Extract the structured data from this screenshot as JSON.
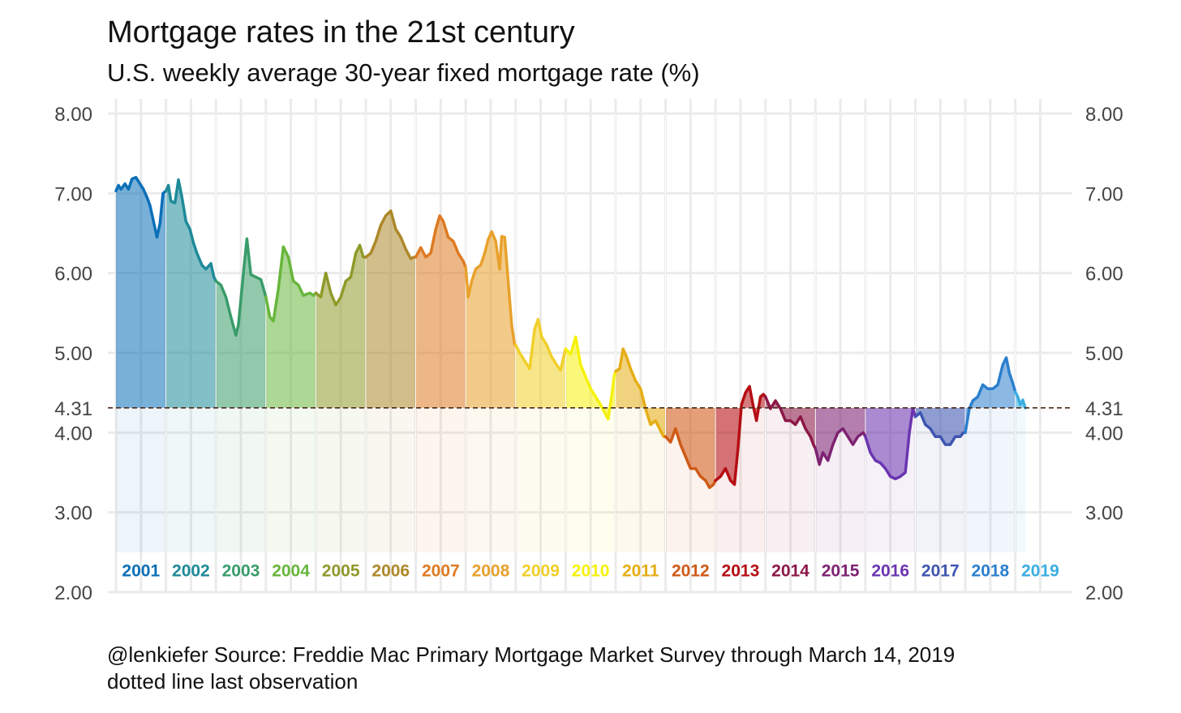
{
  "chart_data": {
    "type": "area",
    "title": "Mortgage rates in the 21st century",
    "subtitle": "U.S. weekly average 30-year fixed mortgage rate (%)",
    "xlabel": "",
    "ylabel": "",
    "ylim": [
      2.0,
      8.0
    ],
    "xlim": [
      2001.0,
      2019.2
    ],
    "y_ticks": [
      {
        "value": 2.0,
        "label": "2.00"
      },
      {
        "value": 3.0,
        "label": "3.00"
      },
      {
        "value": 4.0,
        "label": "4.00"
      },
      {
        "value": 4.31,
        "label": "4.31"
      },
      {
        "value": 5.0,
        "label": "5.00"
      },
      {
        "value": 6.0,
        "label": "6.00"
      },
      {
        "value": 7.0,
        "label": "7.00"
      },
      {
        "value": 8.0,
        "label": "8.00"
      }
    ],
    "reference_line": {
      "value": 4.31,
      "style": "dotted",
      "description": "last observation"
    },
    "grid": true,
    "minor_vertical_gridlines_per_year": 2,
    "baseline_for_lower_fill": 2.5,
    "label_y_value": 2.28,
    "years": [
      {
        "year": "2001",
        "color": "#0b6fb8"
      },
      {
        "year": "2002",
        "color": "#1e8a99"
      },
      {
        "year": "2003",
        "color": "#399c6a"
      },
      {
        "year": "2004",
        "color": "#67b63c"
      },
      {
        "year": "2005",
        "color": "#8f9a2a"
      },
      {
        "year": "2006",
        "color": "#ad8829"
      },
      {
        "year": "2007",
        "color": "#de7a22"
      },
      {
        "year": "2008",
        "color": "#e8a12b"
      },
      {
        "year": "2009",
        "color": "#f0cf2a"
      },
      {
        "year": "2010",
        "color": "#f5f10b"
      },
      {
        "year": "2011",
        "color": "#e5ad14"
      },
      {
        "year": "2012",
        "color": "#cf5a16"
      },
      {
        "year": "2013",
        "color": "#b50d13"
      },
      {
        "year": "2014",
        "color": "#8c1747"
      },
      {
        "year": "2015",
        "color": "#7e2273"
      },
      {
        "year": "2016",
        "color": "#6b35b0"
      },
      {
        "year": "2017",
        "color": "#3e55b0"
      },
      {
        "year": "2018",
        "color": "#2b7fce"
      },
      {
        "year": "2019",
        "color": "#3aaee0"
      }
    ],
    "series": [
      {
        "name": "30-year fixed mortgage rate",
        "points": [
          [
            2001.0,
            7.03
          ],
          [
            2001.05,
            7.1
          ],
          [
            2001.1,
            7.05
          ],
          [
            2001.18,
            7.12
          ],
          [
            2001.25,
            7.05
          ],
          [
            2001.32,
            7.18
          ],
          [
            2001.4,
            7.2
          ],
          [
            2001.48,
            7.12
          ],
          [
            2001.55,
            7.05
          ],
          [
            2001.62,
            6.95
          ],
          [
            2001.68,
            6.85
          ],
          [
            2001.75,
            6.65
          ],
          [
            2001.82,
            6.45
          ],
          [
            2001.88,
            6.62
          ],
          [
            2001.94,
            7.0
          ],
          [
            2002.0,
            7.03
          ],
          [
            2002.05,
            7.1
          ],
          [
            2002.1,
            6.9
          ],
          [
            2002.18,
            6.88
          ],
          [
            2002.25,
            7.17
          ],
          [
            2002.32,
            6.95
          ],
          [
            2002.4,
            6.65
          ],
          [
            2002.48,
            6.55
          ],
          [
            2002.55,
            6.38
          ],
          [
            2002.62,
            6.25
          ],
          [
            2002.72,
            6.1
          ],
          [
            2002.8,
            6.05
          ],
          [
            2002.9,
            6.12
          ],
          [
            2002.96,
            5.95
          ],
          [
            2003.0,
            5.9
          ],
          [
            2003.1,
            5.85
          ],
          [
            2003.2,
            5.7
          ],
          [
            2003.3,
            5.45
          ],
          [
            2003.4,
            5.22
          ],
          [
            2003.45,
            5.35
          ],
          [
            2003.55,
            6.0
          ],
          [
            2003.62,
            6.43
          ],
          [
            2003.7,
            5.98
          ],
          [
            2003.8,
            5.95
          ],
          [
            2003.9,
            5.92
          ],
          [
            2004.0,
            5.7
          ],
          [
            2004.08,
            5.45
          ],
          [
            2004.15,
            5.4
          ],
          [
            2004.25,
            5.8
          ],
          [
            2004.35,
            6.33
          ],
          [
            2004.45,
            6.2
          ],
          [
            2004.55,
            5.9
          ],
          [
            2004.65,
            5.85
          ],
          [
            2004.75,
            5.72
          ],
          [
            2004.88,
            5.75
          ],
          [
            2004.96,
            5.72
          ],
          [
            2005.0,
            5.75
          ],
          [
            2005.1,
            5.7
          ],
          [
            2005.2,
            6.0
          ],
          [
            2005.3,
            5.75
          ],
          [
            2005.4,
            5.6
          ],
          [
            2005.5,
            5.7
          ],
          [
            2005.6,
            5.9
          ],
          [
            2005.7,
            5.95
          ],
          [
            2005.8,
            6.25
          ],
          [
            2005.88,
            6.35
          ],
          [
            2005.95,
            6.2
          ],
          [
            2006.0,
            6.2
          ],
          [
            2006.1,
            6.25
          ],
          [
            2006.2,
            6.4
          ],
          [
            2006.3,
            6.6
          ],
          [
            2006.4,
            6.72
          ],
          [
            2006.5,
            6.78
          ],
          [
            2006.6,
            6.55
          ],
          [
            2006.7,
            6.45
          ],
          [
            2006.8,
            6.3
          ],
          [
            2006.9,
            6.18
          ],
          [
            2006.96,
            6.2
          ],
          [
            2007.0,
            6.2
          ],
          [
            2007.1,
            6.32
          ],
          [
            2007.2,
            6.2
          ],
          [
            2007.3,
            6.25
          ],
          [
            2007.4,
            6.55
          ],
          [
            2007.48,
            6.72
          ],
          [
            2007.55,
            6.65
          ],
          [
            2007.65,
            6.45
          ],
          [
            2007.75,
            6.4
          ],
          [
            2007.85,
            6.25
          ],
          [
            2007.95,
            6.15
          ],
          [
            2008.0,
            6.07
          ],
          [
            2008.05,
            5.7
          ],
          [
            2008.12,
            5.9
          ],
          [
            2008.2,
            6.05
          ],
          [
            2008.3,
            6.1
          ],
          [
            2008.38,
            6.25
          ],
          [
            2008.45,
            6.42
          ],
          [
            2008.52,
            6.52
          ],
          [
            2008.6,
            6.4
          ],
          [
            2008.68,
            6.05
          ],
          [
            2008.72,
            6.46
          ],
          [
            2008.78,
            6.45
          ],
          [
            2008.85,
            5.9
          ],
          [
            2008.92,
            5.35
          ],
          [
            2008.98,
            5.1
          ],
          [
            2009.0,
            5.1
          ],
          [
            2009.08,
            5.0
          ],
          [
            2009.18,
            4.9
          ],
          [
            2009.28,
            4.8
          ],
          [
            2009.38,
            5.3
          ],
          [
            2009.45,
            5.42
          ],
          [
            2009.52,
            5.2
          ],
          [
            2009.62,
            5.1
          ],
          [
            2009.72,
            4.95
          ],
          [
            2009.82,
            4.85
          ],
          [
            2009.9,
            4.78
          ],
          [
            2009.96,
            4.95
          ],
          [
            2010.0,
            5.05
          ],
          [
            2010.1,
            4.98
          ],
          [
            2010.2,
            5.2
          ],
          [
            2010.3,
            4.85
          ],
          [
            2010.4,
            4.7
          ],
          [
            2010.5,
            4.55
          ],
          [
            2010.6,
            4.45
          ],
          [
            2010.7,
            4.35
          ],
          [
            2010.8,
            4.23
          ],
          [
            2010.85,
            4.17
          ],
          [
            2010.92,
            4.45
          ],
          [
            2010.97,
            4.7
          ],
          [
            2011.0,
            4.77
          ],
          [
            2011.08,
            4.8
          ],
          [
            2011.15,
            5.05
          ],
          [
            2011.22,
            4.95
          ],
          [
            2011.3,
            4.8
          ],
          [
            2011.4,
            4.65
          ],
          [
            2011.5,
            4.55
          ],
          [
            2011.6,
            4.3
          ],
          [
            2011.7,
            4.1
          ],
          [
            2011.8,
            4.15
          ],
          [
            2011.88,
            4.05
          ],
          [
            2011.96,
            3.95
          ],
          [
            2012.0,
            3.95
          ],
          [
            2012.1,
            3.88
          ],
          [
            2012.2,
            4.05
          ],
          [
            2012.3,
            3.85
          ],
          [
            2012.4,
            3.7
          ],
          [
            2012.5,
            3.55
          ],
          [
            2012.6,
            3.55
          ],
          [
            2012.7,
            3.45
          ],
          [
            2012.8,
            3.4
          ],
          [
            2012.88,
            3.31
          ],
          [
            2012.96,
            3.35
          ],
          [
            2013.0,
            3.4
          ],
          [
            2013.1,
            3.45
          ],
          [
            2013.2,
            3.55
          ],
          [
            2013.3,
            3.4
          ],
          [
            2013.38,
            3.35
          ],
          [
            2013.45,
            3.8
          ],
          [
            2013.52,
            4.35
          ],
          [
            2013.6,
            4.5
          ],
          [
            2013.68,
            4.58
          ],
          [
            2013.75,
            4.35
          ],
          [
            2013.82,
            4.15
          ],
          [
            2013.9,
            4.45
          ],
          [
            2013.96,
            4.48
          ],
          [
            2014.0,
            4.45
          ],
          [
            2014.1,
            4.3
          ],
          [
            2014.2,
            4.4
          ],
          [
            2014.3,
            4.3
          ],
          [
            2014.4,
            4.15
          ],
          [
            2014.5,
            4.15
          ],
          [
            2014.6,
            4.1
          ],
          [
            2014.7,
            4.2
          ],
          [
            2014.8,
            4.05
          ],
          [
            2014.9,
            3.95
          ],
          [
            2014.96,
            3.85
          ],
          [
            2015.0,
            3.8
          ],
          [
            2015.08,
            3.6
          ],
          [
            2015.15,
            3.75
          ],
          [
            2015.25,
            3.65
          ],
          [
            2015.35,
            3.85
          ],
          [
            2015.45,
            4.0
          ],
          [
            2015.55,
            4.05
          ],
          [
            2015.65,
            3.95
          ],
          [
            2015.75,
            3.85
          ],
          [
            2015.85,
            3.95
          ],
          [
            2015.96,
            4.0
          ],
          [
            2016.0,
            3.95
          ],
          [
            2016.1,
            3.75
          ],
          [
            2016.2,
            3.65
          ],
          [
            2016.3,
            3.62
          ],
          [
            2016.4,
            3.55
          ],
          [
            2016.5,
            3.45
          ],
          [
            2016.6,
            3.42
          ],
          [
            2016.7,
            3.45
          ],
          [
            2016.8,
            3.5
          ],
          [
            2016.88,
            4.0
          ],
          [
            2016.95,
            4.3
          ],
          [
            2017.0,
            4.2
          ],
          [
            2017.1,
            4.25
          ],
          [
            2017.2,
            4.1
          ],
          [
            2017.3,
            4.05
          ],
          [
            2017.4,
            3.95
          ],
          [
            2017.5,
            3.95
          ],
          [
            2017.6,
            3.85
          ],
          [
            2017.7,
            3.85
          ],
          [
            2017.8,
            3.95
          ],
          [
            2017.9,
            3.95
          ],
          [
            2017.96,
            4.0
          ],
          [
            2018.0,
            4.0
          ],
          [
            2018.08,
            4.3
          ],
          [
            2018.15,
            4.4
          ],
          [
            2018.25,
            4.45
          ],
          [
            2018.35,
            4.6
          ],
          [
            2018.45,
            4.55
          ],
          [
            2018.55,
            4.55
          ],
          [
            2018.65,
            4.6
          ],
          [
            2018.75,
            4.85
          ],
          [
            2018.82,
            4.94
          ],
          [
            2018.88,
            4.75
          ],
          [
            2018.95,
            4.62
          ],
          [
            2019.0,
            4.51
          ],
          [
            2019.05,
            4.45
          ],
          [
            2019.1,
            4.35
          ],
          [
            2019.15,
            4.41
          ],
          [
            2019.2,
            4.31
          ]
        ]
      }
    ],
    "caption_line1": "@lenkiefer Source: Freddie Mac Primary Mortgage Market Survey through March 14, 2019",
    "caption_line2": "dotted line last observation"
  }
}
